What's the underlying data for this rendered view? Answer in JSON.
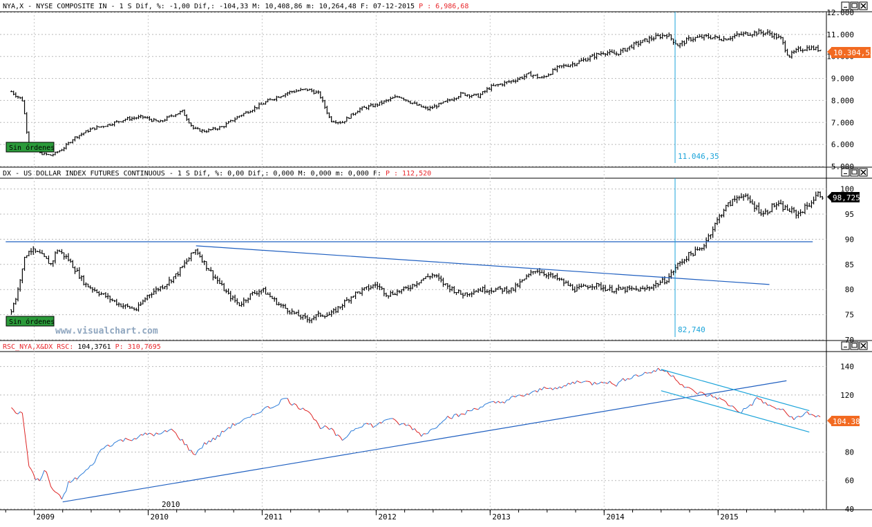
{
  "watermark": "www.visualchart.com",
  "x_axis": {
    "years": [
      "2009",
      "2010",
      "2011",
      "2012",
      "2013",
      "2014",
      "2015"
    ],
    "marker_label": "2010"
  },
  "panels": [
    {
      "header": {
        "symbol": "NYA,X",
        "desc": "NYSE COMPOSITE IN",
        "period": "1 S",
        "stats": "Dif, %: -1,00 Dif,: -104,33 M: 10,408,86 m: 10,264,48 F: 07-12-2015",
        "extra": "P : 6,986,68"
      },
      "price_badge": "10.304,53",
      "ticks": [
        "12.000",
        "11.000",
        "10.000",
        "9.000",
        "8.000",
        "7.000",
        "6.000",
        "5.000"
      ],
      "badge_label": "Sin órdenes",
      "vline_label": "11.046,35"
    },
    {
      "header": {
        "symbol": "DX",
        "desc": "US DOLLAR INDEX FUTURES CONTINUOUS",
        "period": "1 S",
        "stats": "Dif, %: 0,00 Dif,: 0,000 M: 0,000 m: 0,000 F:",
        "extra": "P : 112,520"
      },
      "price_badge": "98,725",
      "ticks": [
        "100",
        "95",
        "90",
        "85",
        "80",
        "75",
        "70"
      ],
      "badge_label": "Sin órdenes",
      "vline_label": "82,740"
    },
    {
      "header": {
        "symbol": "RSC_NYA,X&DX RSC:",
        "value": "104,3761",
        "extra": "P: 310,7695"
      },
      "price_badge": "104.38",
      "ticks": [
        "140",
        "120",
        "100",
        "80",
        "60",
        "40"
      ]
    }
  ],
  "colors": {
    "header_red": "#e8262b",
    "trendline_blue": "#1f5fc0",
    "cyan": "#1aa3d9",
    "badge_green": "#2b9a3a",
    "rsc_red": "#dd2222",
    "rsc_blue": "#2a7bd8",
    "price_badge_orange": "#f26a21",
    "price_badge_black": "#000000"
  },
  "chart_data": [
    {
      "type": "ohlc",
      "series": [
        {
          "name": "NYA,X",
          "points": [
            [
              2008.8,
              8400
            ],
            [
              2008.9,
              8000
            ],
            [
              2008.95,
              6000
            ],
            [
              2009.05,
              5600
            ],
            [
              2009.15,
              5500
            ],
            [
              2009.25,
              5800
            ],
            [
              2009.35,
              6300
            ],
            [
              2009.5,
              6700
            ],
            [
              2009.65,
              6900
            ],
            [
              2009.8,
              7150
            ],
            [
              2009.95,
              7250
            ],
            [
              2010.1,
              7000
            ],
            [
              2010.2,
              7300
            ],
            [
              2010.3,
              7500
            ],
            [
              2010.4,
              6700
            ],
            [
              2010.5,
              6600
            ],
            [
              2010.65,
              6800
            ],
            [
              2010.8,
              7300
            ],
            [
              2010.95,
              7700
            ],
            [
              2011.1,
              8100
            ],
            [
              2011.25,
              8400
            ],
            [
              2011.4,
              8500
            ],
            [
              2011.5,
              8300
            ],
            [
              2011.6,
              7100
            ],
            [
              2011.7,
              7000
            ],
            [
              2011.85,
              7600
            ],
            [
              2012.0,
              7800
            ],
            [
              2012.2,
              8200
            ],
            [
              2012.35,
              7800
            ],
            [
              2012.45,
              7600
            ],
            [
              2012.6,
              7900
            ],
            [
              2012.75,
              8300
            ],
            [
              2012.9,
              8200
            ],
            [
              2013.0,
              8600
            ],
            [
              2013.2,
              8900
            ],
            [
              2013.35,
              9200
            ],
            [
              2013.45,
              9000
            ],
            [
              2013.6,
              9500
            ],
            [
              2013.75,
              9700
            ],
            [
              2013.9,
              10000
            ],
            [
              2014.0,
              10200
            ],
            [
              2014.1,
              10100
            ],
            [
              2014.25,
              10500
            ],
            [
              2014.4,
              10800
            ],
            [
              2014.55,
              11000
            ],
            [
              2014.65,
              10500
            ],
            [
              2014.75,
              10800
            ],
            [
              2014.9,
              10900
            ],
            [
              2015.05,
              10800
            ],
            [
              2015.2,
              11000
            ],
            [
              2015.35,
              11100
            ],
            [
              2015.45,
              11050
            ],
            [
              2015.55,
              10800
            ],
            [
              2015.62,
              10000
            ],
            [
              2015.7,
              10300
            ],
            [
              2015.8,
              10400
            ],
            [
              2015.9,
              10300
            ]
          ]
        }
      ],
      "ylim": [
        5000,
        12000
      ]
    },
    {
      "type": "ohlc",
      "series": [
        {
          "name": "DX",
          "points": [
            [
              2008.8,
              76
            ],
            [
              2008.85,
              79
            ],
            [
              2008.9,
              85
            ],
            [
              2008.95,
              88
            ],
            [
              2009.05,
              87
            ],
            [
              2009.15,
              85
            ],
            [
              2009.2,
              88
            ],
            [
              2009.3,
              86
            ],
            [
              2009.45,
              81
            ],
            [
              2009.6,
              79
            ],
            [
              2009.75,
              77
            ],
            [
              2009.9,
              76
            ],
            [
              2010.0,
              79
            ],
            [
              2010.15,
              81
            ],
            [
              2010.25,
              83
            ],
            [
              2010.35,
              86
            ],
            [
              2010.42,
              88
            ],
            [
              2010.5,
              85
            ],
            [
              2010.6,
              82
            ],
            [
              2010.7,
              79
            ],
            [
              2010.8,
              77
            ],
            [
              2010.9,
              79
            ],
            [
              2011.0,
              80
            ],
            [
              2011.15,
              77
            ],
            [
              2011.3,
              75
            ],
            [
              2011.4,
              74
            ],
            [
              2011.5,
              75
            ],
            [
              2011.6,
              75
            ],
            [
              2011.7,
              77
            ],
            [
              2011.8,
              79
            ],
            [
              2011.9,
              80
            ],
            [
              2012.0,
              81
            ],
            [
              2012.1,
              79
            ],
            [
              2012.25,
              80
            ],
            [
              2012.4,
              82
            ],
            [
              2012.5,
              83
            ],
            [
              2012.6,
              81
            ],
            [
              2012.75,
              79
            ],
            [
              2012.9,
              80
            ],
            [
              2013.05,
              80
            ],
            [
              2013.2,
              80
            ],
            [
              2013.3,
              82
            ],
            [
              2013.4,
              84
            ],
            [
              2013.5,
              83
            ],
            [
              2013.6,
              82
            ],
            [
              2013.75,
              80
            ],
            [
              2013.9,
              81
            ],
            [
              2014.05,
              80
            ],
            [
              2014.2,
              80
            ],
            [
              2014.35,
              80
            ],
            [
              2014.45,
              81
            ],
            [
              2014.55,
              82
            ],
            [
              2014.65,
              85
            ],
            [
              2014.75,
              87
            ],
            [
              2014.85,
              88
            ],
            [
              2014.95,
              92
            ],
            [
              2015.05,
              96
            ],
            [
              2015.15,
              98
            ],
            [
              2015.2,
              99
            ],
            [
              2015.3,
              97
            ],
            [
              2015.4,
              95
            ],
            [
              2015.5,
              97
            ],
            [
              2015.6,
              96
            ],
            [
              2015.7,
              95
            ],
            [
              2015.8,
              97
            ],
            [
              2015.88,
              99
            ],
            [
              2015.92,
              98.7
            ]
          ]
        }
      ],
      "ylim": [
        70,
        102
      ],
      "horizontal_line": 89.5,
      "trendline": [
        [
          2010.42,
          88.7
        ],
        [
          2015.45,
          81
        ]
      ]
    },
    {
      "type": "line",
      "series": [
        {
          "name": "RSC_NYA,X&DX",
          "points": [
            [
              2008.8,
              110
            ],
            [
              2008.9,
              106
            ],
            [
              2008.95,
              72
            ],
            [
              2009.0,
              62
            ],
            [
              2009.05,
              60
            ],
            [
              2009.1,
              68
            ],
            [
              2009.15,
              55
            ],
            [
              2009.2,
              50
            ],
            [
              2009.25,
              47
            ],
            [
              2009.3,
              58
            ],
            [
              2009.4,
              63
            ],
            [
              2009.5,
              70
            ],
            [
              2009.6,
              83
            ],
            [
              2009.75,
              88
            ],
            [
              2009.9,
              90
            ],
            [
              2010.0,
              93
            ],
            [
              2010.1,
              92
            ],
            [
              2010.2,
              96
            ],
            [
              2010.3,
              88
            ],
            [
              2010.4,
              78
            ],
            [
              2010.5,
              86
            ],
            [
              2010.6,
              90
            ],
            [
              2010.7,
              97
            ],
            [
              2010.8,
              101
            ],
            [
              2010.9,
              104
            ],
            [
              2011.0,
              110
            ],
            [
              2011.1,
              112
            ],
            [
              2011.2,
              118
            ],
            [
              2011.3,
              112
            ],
            [
              2011.4,
              110
            ],
            [
              2011.5,
              98
            ],
            [
              2011.6,
              96
            ],
            [
              2011.7,
              88
            ],
            [
              2011.8,
              96
            ],
            [
              2011.9,
              100
            ],
            [
              2012.0,
              98
            ],
            [
              2012.1,
              104
            ],
            [
              2012.2,
              100
            ],
            [
              2012.3,
              98
            ],
            [
              2012.4,
              92
            ],
            [
              2012.5,
              96
            ],
            [
              2012.6,
              104
            ],
            [
              2012.75,
              106
            ],
            [
              2012.85,
              110
            ],
            [
              2013.0,
              114
            ],
            [
              2013.1,
              115
            ],
            [
              2013.2,
              118
            ],
            [
              2013.3,
              120
            ],
            [
              2013.4,
              122
            ],
            [
              2013.5,
              126
            ],
            [
              2013.6,
              124
            ],
            [
              2013.7,
              128
            ],
            [
              2013.8,
              130
            ],
            [
              2013.9,
              128
            ],
            [
              2014.0,
              130
            ],
            [
              2014.1,
              127
            ],
            [
              2014.2,
              132
            ],
            [
              2014.3,
              134
            ],
            [
              2014.4,
              136
            ],
            [
              2014.5,
              138
            ],
            [
              2014.6,
              134
            ],
            [
              2014.7,
              126
            ],
            [
              2014.8,
              122
            ],
            [
              2014.9,
              120
            ],
            [
              2015.0,
              118
            ],
            [
              2015.1,
              113
            ],
            [
              2015.2,
              108
            ],
            [
              2015.3,
              114
            ],
            [
              2015.35,
              118
            ],
            [
              2015.45,
              112
            ],
            [
              2015.55,
              110
            ],
            [
              2015.65,
              104
            ],
            [
              2015.72,
              104
            ],
            [
              2015.78,
              108
            ],
            [
              2015.83,
              106
            ],
            [
              2015.9,
              104.4
            ]
          ]
        }
      ],
      "ylim": [
        40,
        150
      ],
      "trendline": [
        [
          2009.25,
          45
        ],
        [
          2015.6,
          130
        ]
      ],
      "channel_upper": [
        [
          2014.5,
          138
        ],
        [
          2015.8,
          109
        ]
      ],
      "channel_lower": [
        [
          2014.5,
          123
        ],
        [
          2015.8,
          94
        ]
      ]
    }
  ]
}
